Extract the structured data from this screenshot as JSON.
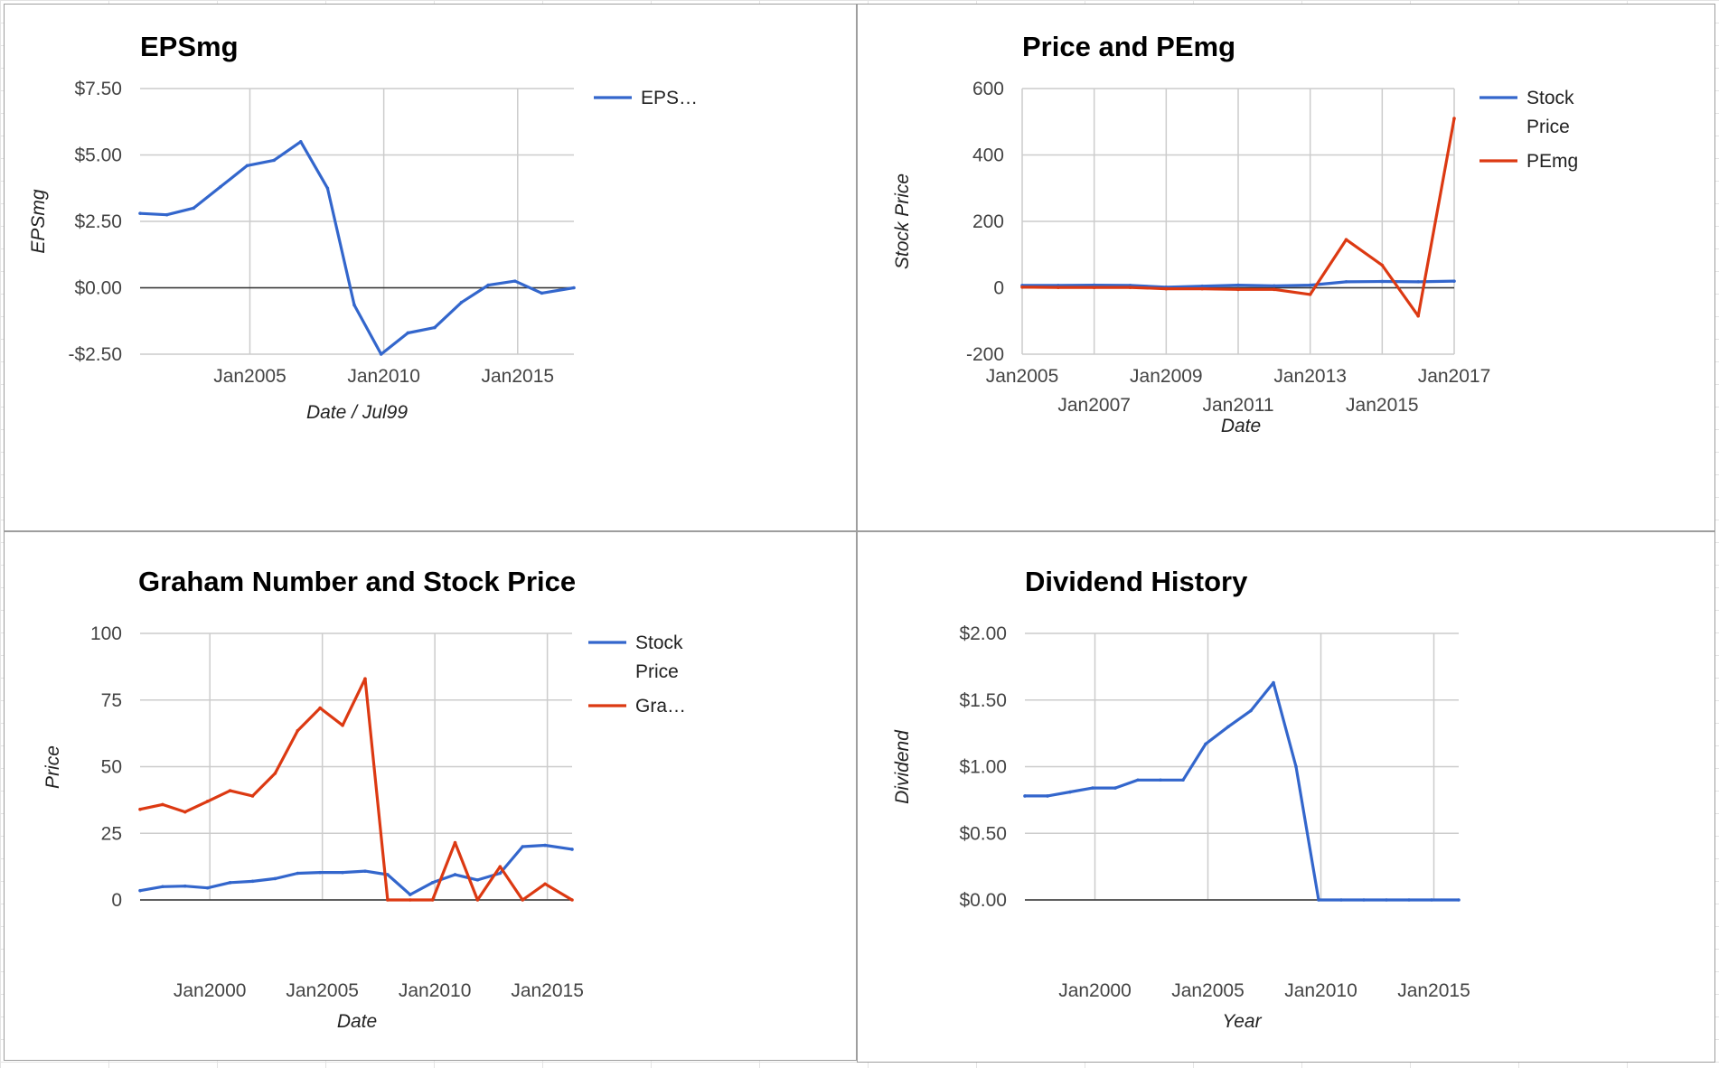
{
  "chart_data": [
    {
      "type": "line",
      "title": "EPSmg",
      "xlabel": "Date / Jul99",
      "ylabel": "EPSmg",
      "x_ticks": [
        {
          "label": "Jan2005",
          "value": 2005.0,
          "row": 0
        },
        {
          "label": "Jan2010",
          "value": 2010.0,
          "row": 0
        },
        {
          "label": "Jan2015",
          "value": 2015.0,
          "row": 0
        }
      ],
      "y_ticks": [
        {
          "label": "$7.50",
          "value": 7.5
        },
        {
          "label": "$5.00",
          "value": 5.0
        },
        {
          "label": "$2.50",
          "value": 2.5
        },
        {
          "label": "$0.00",
          "value": 0.0
        },
        {
          "label": "-$2.50",
          "value": -2.5
        }
      ],
      "xlim": [
        2000.9,
        2017.1
      ],
      "ylim": [
        -2.5,
        7.5
      ],
      "grid": true,
      "legend_position": "right",
      "series": [
        {
          "name": "EPS…",
          "color": "#3366cc",
          "x": [
            2000.9,
            2001.9,
            2002.9,
            2003.9,
            2004.9,
            2005.9,
            2006.9,
            2007.9,
            2008.9,
            2009.9,
            2010.9,
            2011.9,
            2012.9,
            2013.9,
            2014.9,
            2015.9,
            2017.1
          ],
          "y": [
            2.8,
            2.75,
            3.0,
            3.8,
            4.6,
            4.8,
            5.5,
            3.75,
            -0.65,
            -2.5,
            -1.7,
            -1.5,
            -0.55,
            0.1,
            0.25,
            -0.2,
            0.0
          ]
        }
      ]
    },
    {
      "type": "line",
      "title": "Price and PEmg",
      "xlabel": "Date",
      "ylabel": "Stock Price",
      "x_ticks": [
        {
          "label": "Jan2005",
          "value": 2005.0,
          "row": 0
        },
        {
          "label": "Jan2007",
          "value": 2007.0,
          "row": 1
        },
        {
          "label": "Jan2009",
          "value": 2009.0,
          "row": 0
        },
        {
          "label": "Jan2011",
          "value": 2011.0,
          "row": 1
        },
        {
          "label": "Jan2013",
          "value": 2013.0,
          "row": 0
        },
        {
          "label": "Jan2015",
          "value": 2015.0,
          "row": 1
        },
        {
          "label": "Jan2017",
          "value": 2017.0,
          "row": 0
        }
      ],
      "y_ticks": [
        {
          "label": "600",
          "value": 600
        },
        {
          "label": "400",
          "value": 400
        },
        {
          "label": "200",
          "value": 200
        },
        {
          "label": "0",
          "value": 0
        },
        {
          "label": "-200",
          "value": -200
        }
      ],
      "xlim": [
        2005.0,
        2017.0
      ],
      "ylim": [
        -200,
        600
      ],
      "grid": true,
      "legend_position": "right",
      "series": [
        {
          "name": "Stock Price",
          "color": "#3366cc",
          "x": [
            2005.0,
            2006.0,
            2007.0,
            2008.0,
            2009.0,
            2010.0,
            2011.0,
            2012.0,
            2013.0,
            2014.0,
            2015.0,
            2016.0,
            2017.0
          ],
          "y": [
            7,
            7,
            8,
            7,
            2,
            5,
            8,
            6,
            8,
            18,
            19,
            18,
            20
          ]
        },
        {
          "name": "PEmg",
          "color": "#dc3912",
          "x": [
            2005.0,
            2006.0,
            2007.0,
            2008.0,
            2009.0,
            2010.0,
            2011.0,
            2012.0,
            2013.0,
            2014.0,
            2015.0,
            2016.0,
            2017.0
          ],
          "y": [
            2,
            1,
            1,
            1,
            -3,
            -3,
            -5,
            -5,
            -20,
            145,
            68,
            -85,
            510
          ]
        }
      ]
    },
    {
      "type": "line",
      "title": "Graham Number and Stock Price",
      "xlabel": "Date",
      "ylabel": "Price",
      "x_ticks": [
        {
          "label": "Jan2000",
          "value": 2000.0,
          "row": 0
        },
        {
          "label": "Jan2005",
          "value": 2005.0,
          "row": 0
        },
        {
          "label": "Jan2010",
          "value": 2010.0,
          "row": 0
        },
        {
          "label": "Jan2015",
          "value": 2015.0,
          "row": 0
        }
      ],
      "y_ticks": [
        {
          "label": "100",
          "value": 100
        },
        {
          "label": "75",
          "value": 75
        },
        {
          "label": "50",
          "value": 50
        },
        {
          "label": "25",
          "value": 25
        },
        {
          "label": "0",
          "value": 0
        }
      ],
      "xlim": [
        1996.9,
        2016.1
      ],
      "ylim": [
        0,
        100
      ],
      "grid": true,
      "legend_position": "right",
      "series": [
        {
          "name": "Stock Price",
          "color": "#3366cc",
          "x": [
            1996.9,
            1997.9,
            1998.9,
            1999.9,
            2000.9,
            2001.9,
            2002.9,
            2003.9,
            2004.9,
            2005.9,
            2006.9,
            2007.9,
            2008.9,
            2009.9,
            2010.9,
            2011.9,
            2012.9,
            2013.9,
            2014.9,
            2016.1
          ],
          "y": [
            3.5,
            5,
            5.2,
            4.5,
            6.5,
            7,
            8,
            10,
            10.3,
            10.3,
            10.8,
            9.5,
            2,
            6.5,
            9.5,
            7.5,
            10,
            20,
            20.5,
            19
          ]
        },
        {
          "name": "Gra…",
          "color": "#dc3912",
          "x": [
            1996.9,
            1997.9,
            1998.9,
            1999.9,
            2000.9,
            2001.9,
            2002.9,
            2003.9,
            2004.9,
            2005.9,
            2006.9,
            2007.9,
            2008.9,
            2009.9,
            2010.9,
            2011.9,
            2012.9,
            2013.9,
            2014.9,
            2016.1
          ],
          "y": [
            34,
            35.8,
            33,
            37,
            41,
            39,
            47.5,
            63.5,
            72,
            65.5,
            83,
            0,
            0,
            0,
            21.5,
            0,
            12.5,
            0,
            6,
            0
          ]
        }
      ]
    },
    {
      "type": "line",
      "title": "Dividend History",
      "xlabel": "Year",
      "ylabel": "Dividend",
      "x_ticks": [
        {
          "label": "Jan2000",
          "value": 2000.0,
          "row": 0
        },
        {
          "label": "Jan2005",
          "value": 2005.0,
          "row": 0
        },
        {
          "label": "Jan2010",
          "value": 2010.0,
          "row": 0
        },
        {
          "label": "Jan2015",
          "value": 2015.0,
          "row": 0
        }
      ],
      "y_ticks": [
        {
          "label": "$2.00",
          "value": 2.0
        },
        {
          "label": "$1.50",
          "value": 1.5
        },
        {
          "label": "$1.00",
          "value": 1.0
        },
        {
          "label": "$0.50",
          "value": 0.5
        },
        {
          "label": "$0.00",
          "value": 0.0
        }
      ],
      "xlim": [
        1996.9,
        2016.1
      ],
      "ylim": [
        0,
        2.0
      ],
      "grid": true,
      "legend_position": "none",
      "series": [
        {
          "name": "",
          "color": "#3366cc",
          "x": [
            1996.9,
            1997.9,
            1998.9,
            1999.9,
            2000.9,
            2001.9,
            2002.9,
            2003.9,
            2004.9,
            2005.9,
            2006.9,
            2007.9,
            2008.9,
            2009.9,
            2010.9,
            2011.9,
            2012.9,
            2013.9,
            2014.9,
            2016.1
          ],
          "y": [
            0.78,
            0.78,
            0.81,
            0.84,
            0.84,
            0.9,
            0.9,
            0.9,
            1.17,
            1.3,
            1.42,
            1.63,
            1.0,
            0.0,
            0.0,
            0.0,
            0.0,
            0.0,
            0.0,
            0.0
          ]
        }
      ]
    }
  ]
}
